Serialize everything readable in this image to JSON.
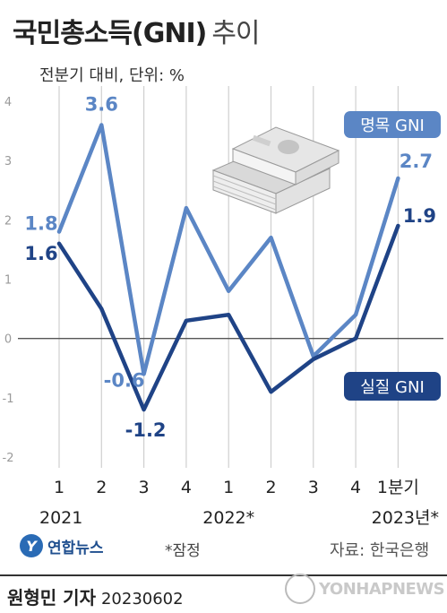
{
  "title": "국민총소득(GNI)",
  "title_suffix": "추이",
  "unit_label": "전분기 대비, 단위: %",
  "colors": {
    "nominal": "#5b86c5",
    "real": "#1f4386",
    "grid": "#cfcfcf",
    "zero_line": "#555555"
  },
  "chart_data": {
    "type": "line",
    "categories": [
      "1",
      "2",
      "3",
      "4",
      "1",
      "2",
      "3",
      "4",
      "1분기"
    ],
    "year_labels": [
      {
        "label": "2021",
        "index": 0
      },
      {
        "label": "2022*",
        "index": 4
      },
      {
        "label": "2023년*",
        "index": 8
      }
    ],
    "ylim": [
      -2,
      4
    ],
    "yticks": [
      4,
      3,
      2,
      1,
      0,
      -1,
      -2
    ],
    "grid": "vertical",
    "series": [
      {
        "name": "명목 GNI",
        "key": "nominal",
        "values": [
          1.8,
          3.6,
          -0.6,
          2.2,
          0.8,
          1.7,
          -0.3,
          0.4,
          2.7
        ],
        "data_labels": [
          {
            "index": 0,
            "text": "1.8"
          },
          {
            "index": 1,
            "text": "3.6"
          },
          {
            "index": 2,
            "text": "-0.6"
          },
          {
            "index": 8,
            "text": "2.7"
          }
        ]
      },
      {
        "name": "실질 GNI",
        "key": "real",
        "values": [
          1.6,
          0.5,
          -1.2,
          0.3,
          0.4,
          -0.9,
          -0.35,
          0.0,
          1.9
        ],
        "data_labels": [
          {
            "index": 0,
            "text": "1.6"
          },
          {
            "index": 2,
            "text": "-1.2"
          },
          {
            "index": 8,
            "text": "1.9"
          }
        ]
      }
    ]
  },
  "note": "*잠정",
  "source": "자료: 한국은행",
  "brand": "연합뉴스",
  "reporter": "원형민 기자",
  "date": "20230602",
  "watermark": "YONHAPNEWS"
}
